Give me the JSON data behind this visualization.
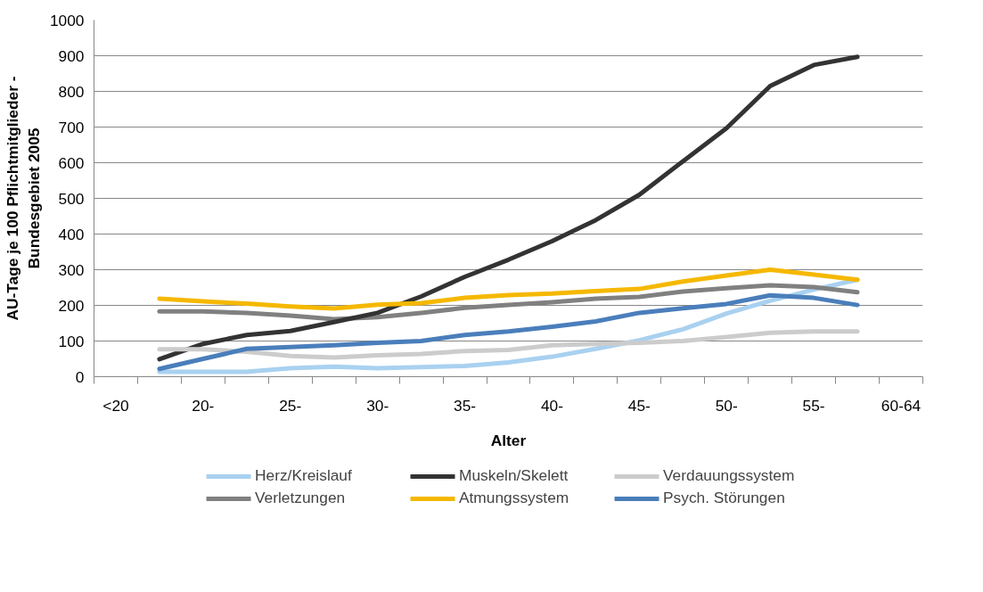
{
  "chart_data": {
    "type": "line",
    "xlabel": "Alter",
    "ylabel": "AU-Tage je 100 Pflichtmitglieder -\nBundesgebiet 2005",
    "categories": [
      "<20",
      null,
      "20-",
      null,
      "25-",
      null,
      "30-",
      null,
      "35-",
      null,
      "40-",
      null,
      "45-",
      null,
      "50-",
      null,
      "55-",
      null,
      "60-64"
    ],
    "series": [
      {
        "name": "Herz/Kreislauf",
        "color": "#a9d1f0",
        "values": [
          null,
          14,
          14,
          14,
          24,
          28,
          24,
          27,
          30,
          40,
          56,
          78,
          102,
          133,
          177,
          213,
          244,
          272,
          null
        ]
      },
      {
        "name": "Verletzungen",
        "color": "#808080",
        "values": [
          null,
          183,
          183,
          179,
          171,
          161,
          167,
          179,
          193,
          201,
          209,
          219,
          224,
          239,
          248,
          256,
          251,
          237,
          null
        ]
      },
      {
        "name": "Muskeln/Skelett",
        "color": "#333333",
        "values": [
          null,
          49,
          92,
          117,
          128,
          153,
          179,
          225,
          280,
          328,
          380,
          439,
          510,
          604,
          697,
          815,
          874,
          897,
          null
        ]
      },
      {
        "name": "Atmungssystem",
        "color": "#f5b800",
        "values": [
          null,
          219,
          211,
          205,
          197,
          191,
          202,
          206,
          221,
          229,
          233,
          240,
          246,
          267,
          284,
          300,
          286,
          272,
          null
        ]
      },
      {
        "name": "Verdauungssystem",
        "color": "#cccccc",
        "values": [
          null,
          77,
          77,
          70,
          58,
          54,
          60,
          64,
          72,
          75,
          88,
          92,
          95,
          100,
          111,
          123,
          127,
          127,
          null
        ]
      },
      {
        "name": "Psych. Störungen",
        "color": "#4a7ebb",
        "values": [
          null,
          22,
          50,
          78,
          83,
          88,
          95,
          100,
          117,
          127,
          140,
          155,
          179,
          192,
          204,
          228,
          221,
          201,
          null
        ]
      }
    ],
    "ylim": [
      0,
      1000
    ],
    "yticks": [
      0,
      100,
      200,
      300,
      400,
      500,
      600,
      700,
      800,
      900,
      1000
    ],
    "grid": "y",
    "legend": "bottom",
    "marker": "none",
    "line_style": "solid"
  }
}
